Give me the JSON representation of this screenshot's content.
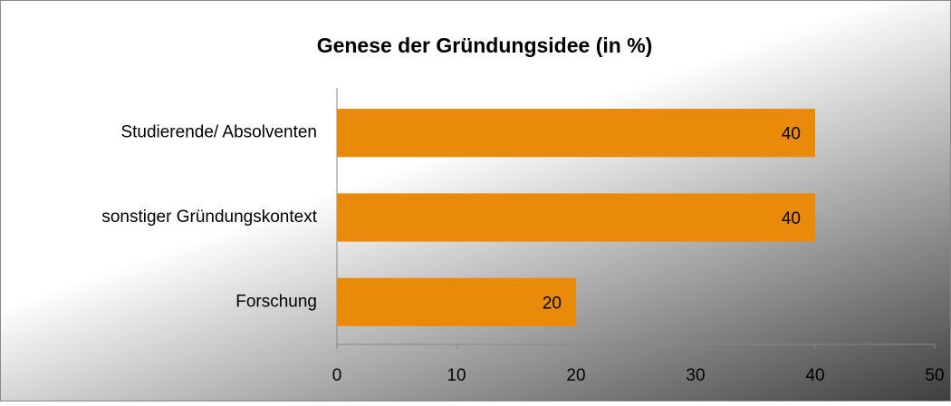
{
  "chart_data": {
    "type": "bar",
    "orientation": "horizontal",
    "title": "Genese der Gründungsidee (in %)",
    "categories": [
      "Studierende/ Absolventen",
      "sonstiger Gründungskontext",
      "Forschung"
    ],
    "values": [
      40,
      40,
      20
    ],
    "color": "#ea8a0b",
    "xlim": [
      0,
      50
    ],
    "xticks": [
      0,
      10,
      20,
      30,
      40,
      50
    ],
    "grid": false
  }
}
